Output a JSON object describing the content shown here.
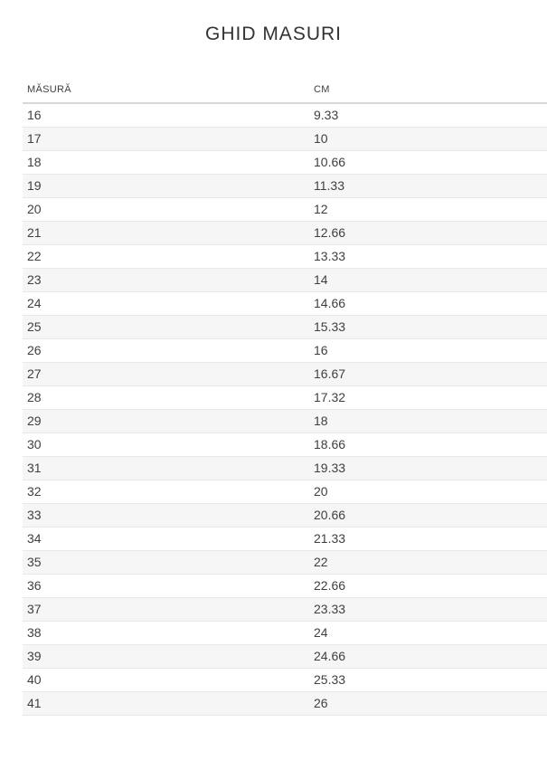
{
  "page": {
    "title": "GHID MASURI"
  },
  "table": {
    "headers": [
      "MĂSURĂ",
      "CM"
    ],
    "rows": [
      [
        "16",
        "9.33"
      ],
      [
        "17",
        "10"
      ],
      [
        "18",
        "10.66"
      ],
      [
        "19",
        "11.33"
      ],
      [
        "20",
        "12"
      ],
      [
        "21",
        "12.66"
      ],
      [
        "22",
        "13.33"
      ],
      [
        "23",
        "14"
      ],
      [
        "24",
        "14.66"
      ],
      [
        "25",
        "15.33"
      ],
      [
        "26",
        "16"
      ],
      [
        "27",
        "16.67"
      ],
      [
        "28",
        "17.32"
      ],
      [
        "29",
        "18"
      ],
      [
        "30",
        "18.66"
      ],
      [
        "31",
        "19.33"
      ],
      [
        "32",
        "20"
      ],
      [
        "33",
        "20.66"
      ],
      [
        "34",
        "21.33"
      ],
      [
        "35",
        "22"
      ],
      [
        "36",
        "22.66"
      ],
      [
        "37",
        "23.33"
      ],
      [
        "38",
        "24"
      ],
      [
        "39",
        "24.66"
      ],
      [
        "40",
        "25.33"
      ],
      [
        "41",
        "26"
      ]
    ]
  },
  "colors": {
    "stripe": "#f6f6f6",
    "row_border": "#e8e8e8",
    "header_border": "#d9d9d9",
    "text": "#3f3f3f",
    "title": "#333333",
    "background": "#ffffff"
  }
}
